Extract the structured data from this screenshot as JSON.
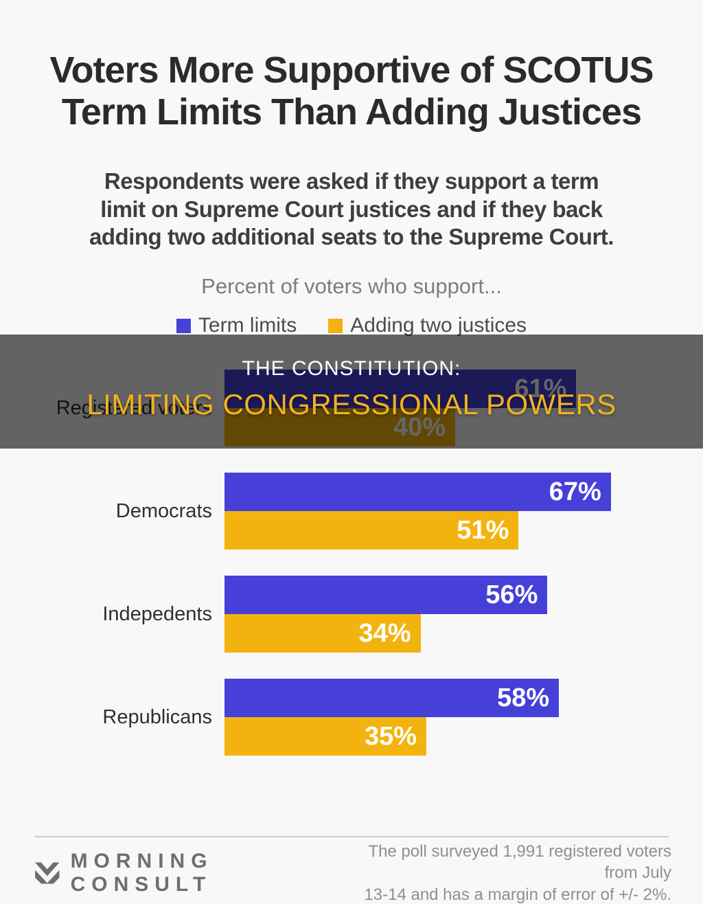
{
  "title": {
    "text": "Voters More Supportive of SCOTUS\nTerm Limits Than Adding Justices"
  },
  "subtitle": {
    "text": "Respondents were asked if they support a term\nlimit on Supreme Court justices and if they back\nadding two additional seats to the Supreme Court."
  },
  "chart_data": {
    "type": "bar",
    "orientation": "horizontal",
    "caption": "Percent of voters who support...",
    "categories": [
      "Registered voters",
      "Democrats",
      "Indepedents",
      "Republicans"
    ],
    "series": [
      {
        "name": "Term limits",
        "color": "#4640d9",
        "values": [
          61,
          67,
          56,
          58
        ]
      },
      {
        "name": "Adding two justices",
        "color": "#f3b30e",
        "values": [
          40,
          51,
          34,
          35
        ]
      }
    ],
    "value_suffix": "%",
    "xlim": [
      0,
      100
    ],
    "legend_position": "top-center",
    "grid": false
  },
  "overlay_banner": {
    "line1": "THE CONSTITUTION:",
    "line2": "LIMITING CONGRESSIONAL POWERS",
    "line1_color": "#ffffff",
    "line2_color": "#f2b21c"
  },
  "footer": {
    "brand": "MORNING CONSULT",
    "note": "The poll surveyed 1,991 registered voters from July\n13-14 and has a margin of error of +/- 2%."
  },
  "colors": {
    "background": "#f8f8f9",
    "title_text": "#2b2b2b",
    "caption_text": "#7d7d7d",
    "overlay_scrim": "rgba(0,0,0,0.60)"
  }
}
